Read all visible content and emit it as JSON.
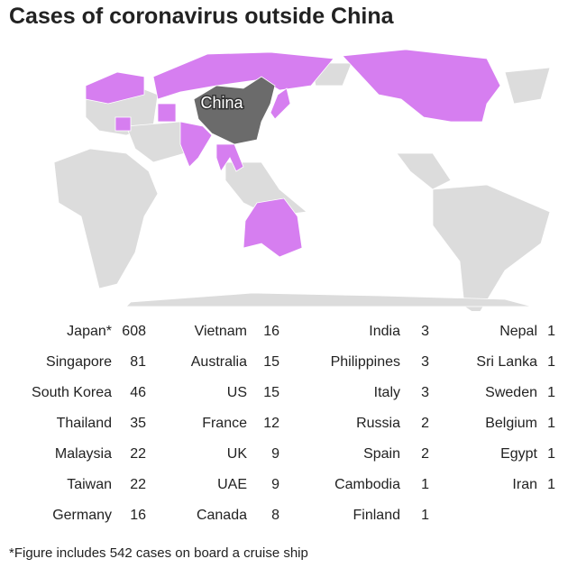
{
  "header": {
    "title": "Cases of coronavirus outside China"
  },
  "map": {
    "label": "China"
  },
  "table": {
    "columns": [
      [
        {
          "country": "Japan*",
          "cases": 608
        },
        {
          "country": "Singapore",
          "cases": 81
        },
        {
          "country": "South Korea",
          "cases": 46
        },
        {
          "country": "Thailand",
          "cases": 35
        },
        {
          "country": "Malaysia",
          "cases": 22
        },
        {
          "country": "Taiwan",
          "cases": 22
        },
        {
          "country": "Germany",
          "cases": 16
        }
      ],
      [
        {
          "country": "Vietnam",
          "cases": 16
        },
        {
          "country": "Australia",
          "cases": 15
        },
        {
          "country": "US",
          "cases": 15
        },
        {
          "country": "France",
          "cases": 12
        },
        {
          "country": "UK",
          "cases": 9
        },
        {
          "country": "UAE",
          "cases": 9
        },
        {
          "country": "Canada",
          "cases": 8
        }
      ],
      [
        {
          "country": "India",
          "cases": 3
        },
        {
          "country": "Philippines",
          "cases": 3
        },
        {
          "country": "Italy",
          "cases": 3
        },
        {
          "country": "Russia",
          "cases": 2
        },
        {
          "country": "Spain",
          "cases": 2
        },
        {
          "country": "Cambodia",
          "cases": 1
        },
        {
          "country": "Finland",
          "cases": 1
        }
      ],
      [
        {
          "country": "Nepal",
          "cases": 1
        },
        {
          "country": "Sri Lanka",
          "cases": 1
        },
        {
          "country": "Sweden",
          "cases": 1
        },
        {
          "country": "Belgium",
          "cases": 1
        },
        {
          "country": "Egypt",
          "cases": 1
        },
        {
          "country": "Iran",
          "cases": 1
        }
      ]
    ]
  },
  "footer": {
    "note": "*Figure includes 542 cases on board a cruise ship"
  }
}
